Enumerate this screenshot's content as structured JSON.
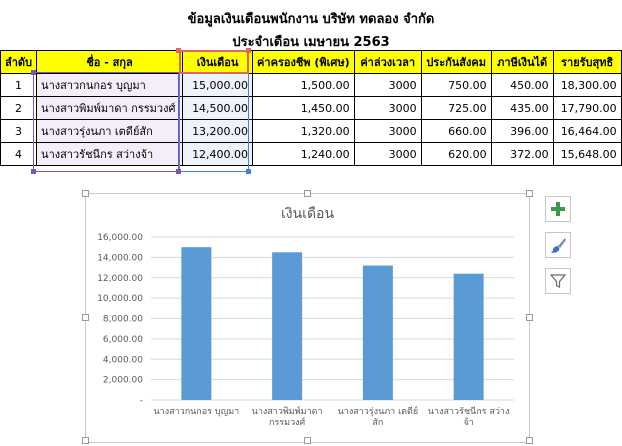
{
  "sheet": {
    "title": "ข้อมูลเงินเดือนพนักงาน บริษัท ทดลอง จำกัด",
    "subtitle": "ประจำเดือน เมษายน 2563",
    "headers": [
      "ลำดับ",
      "ชื่อ - สกุล",
      "เงินเดือน",
      "ค่าครองชีพ (พิเศษ)",
      "ค่าล่วงเวลา",
      "ประกันสังคม",
      "ภาษีเงินได้",
      "รายรับสุทธิ"
    ],
    "rows": [
      [
        "1",
        "นางสาวกนกอร บุญมา",
        "15,000.00",
        "1,500.00",
        "3000",
        "750.00",
        "450.00",
        "18,300.00"
      ],
      [
        "2",
        "นางสาวพิมพ์มาดา กรรมวงศ์",
        "14,500.00",
        "1,450.00",
        "3000",
        "725.00",
        "435.00",
        "17,790.00"
      ],
      [
        "3",
        "นางสาวรุ่งนภา เตดีย์สัก",
        "13,200.00",
        "1,320.00",
        "3000",
        "660.00",
        "396.00",
        "16,464.00"
      ],
      [
        "4",
        "นางสาวรัชนีกร สว่างจ้า",
        "12,400.00",
        "1,240.00",
        "3000",
        "620.00",
        "372.00",
        "15,648.00"
      ]
    ]
  },
  "chart_tools": {
    "elements_icon": "plus-icon",
    "styles_icon": "brush-icon",
    "filter_icon": "filter-icon"
  },
  "colors": {
    "header_fill": "#ffff00",
    "bar": "#5b9bd5",
    "selection_purple": "#7a56b8",
    "selection_red": "#e06666",
    "selection_blue": "#4a7fd6",
    "plus_green": "#3a9a4a"
  },
  "chart_data": {
    "type": "bar",
    "title": "เงินเดือน",
    "categories": [
      [
        "นางสาวกนกอร บุญมา"
      ],
      [
        "นางสาวพิมพ์มาดา",
        "กรรมวงศ์"
      ],
      [
        "นางสาวรุ่งนภา เตดีย์",
        "สัก"
      ],
      [
        "นางสาวรัชนีกร สว่าง",
        "จ้า"
      ]
    ],
    "values": [
      15000,
      14500,
      13200,
      12400
    ],
    "ylim": [
      0,
      16000
    ],
    "yticks": [
      "-",
      "2,000.00",
      "4,000.00",
      "6,000.00",
      "8,000.00",
      "10,000.00",
      "12,000.00",
      "14,000.00",
      "16,000.00"
    ],
    "grid": true,
    "legend": "none"
  }
}
